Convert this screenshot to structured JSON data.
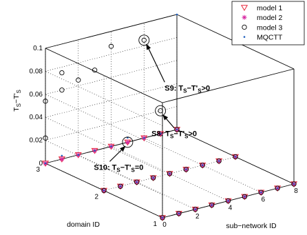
{
  "chart_data": {
    "type": "scatter",
    "dimensions": 3,
    "xlabel": "sub−network ID",
    "ylabel": "domain ID",
    "zlabel_main": "T",
    "zlabel_sub1": "S",
    "zlabel_mid": "−T'",
    "zlabel_sub2": "S",
    "xlim": [
      0,
      8
    ],
    "ylim": [
      1,
      3
    ],
    "zlim": [
      0,
      0.1
    ],
    "xticks": [
      "0",
      "2",
      "4",
      "6",
      "8"
    ],
    "yticks": [
      "1",
      "2",
      "3"
    ],
    "zticks": [
      "0",
      "0.02",
      "0.04",
      "0.06",
      "0.08",
      "0.1"
    ],
    "legend_position": "top-right",
    "grid": true,
    "series": [
      {
        "name": "model 1",
        "marker": "triangle-down",
        "color": "#e8273a",
        "points": [
          [
            0,
            1,
            0
          ],
          [
            1,
            1,
            0
          ],
          [
            2,
            1,
            0
          ],
          [
            3,
            1,
            0
          ],
          [
            4,
            1,
            0
          ],
          [
            5,
            1,
            0
          ],
          [
            6,
            1,
            0
          ],
          [
            7,
            1,
            0
          ],
          [
            8,
            1,
            0
          ],
          [
            0,
            2,
            0
          ],
          [
            1,
            2,
            0
          ],
          [
            2,
            2,
            0
          ],
          [
            3,
            2,
            0
          ],
          [
            4,
            2,
            0
          ],
          [
            5,
            2,
            0
          ],
          [
            6,
            2,
            0
          ],
          [
            7,
            2,
            0
          ],
          [
            8,
            2,
            0
          ],
          [
            0,
            3,
            0
          ],
          [
            1,
            3,
            0
          ],
          [
            2,
            3,
            0
          ],
          [
            3,
            3,
            0
          ],
          [
            4,
            3,
            0
          ],
          [
            5,
            3,
            0
          ],
          [
            6,
            3,
            0
          ],
          [
            7,
            3,
            0
          ],
          [
            8,
            3,
            0
          ]
        ]
      },
      {
        "name": "model 2",
        "marker": "asterisk",
        "color": "#d6249f",
        "points": [
          [
            0,
            1,
            0
          ],
          [
            1,
            1,
            0
          ],
          [
            2,
            1,
            0
          ],
          [
            3,
            1,
            0
          ],
          [
            4,
            1,
            0
          ],
          [
            5,
            1,
            0
          ],
          [
            6,
            1,
            0
          ],
          [
            7,
            1,
            0
          ],
          [
            8,
            1,
            0
          ],
          [
            0,
            2,
            0
          ],
          [
            1,
            2,
            0
          ],
          [
            2,
            2,
            0
          ],
          [
            3,
            2,
            0
          ],
          [
            4,
            2,
            0
          ],
          [
            5,
            2,
            0
          ],
          [
            6,
            2,
            0
          ],
          [
            7,
            2,
            0
          ],
          [
            8,
            2,
            0
          ],
          [
            0,
            3,
            0
          ],
          [
            1,
            3,
            0
          ],
          [
            2,
            3,
            0
          ],
          [
            3,
            3,
            0
          ],
          [
            4,
            3,
            0
          ],
          [
            5,
            3,
            0
          ],
          [
            6,
            3,
            0
          ],
          [
            7,
            3,
            0
          ],
          [
            8,
            3,
            0
          ]
        ]
      },
      {
        "name": "model 3",
        "marker": "circle",
        "color": "#000000",
        "points": [
          [
            0,
            1,
            0
          ],
          [
            1,
            1,
            0
          ],
          [
            2,
            1,
            0
          ],
          [
            3,
            1,
            0
          ],
          [
            4,
            1,
            0
          ],
          [
            5,
            1,
            0
          ],
          [
            6,
            1,
            0
          ],
          [
            7,
            1,
            0
          ],
          [
            8,
            1,
            0
          ],
          [
            0,
            2,
            0
          ],
          [
            1,
            2,
            0
          ],
          [
            2,
            2,
            0
          ],
          [
            3,
            2,
            0
          ],
          [
            4,
            2,
            0
          ],
          [
            5,
            2,
            0
          ],
          [
            6,
            2,
            0
          ],
          [
            7,
            2,
            0
          ],
          [
            8,
            2,
            0
          ],
          [
            0,
            3,
            0.022
          ],
          [
            0,
            3,
            0.054
          ],
          [
            1,
            3,
            0.06
          ],
          [
            1,
            3,
            0.075
          ],
          [
            2,
            3,
            0.065
          ],
          [
            3,
            3,
            0.07
          ],
          [
            4,
            3,
            0.087
          ],
          [
            6,
            3,
            0.085
          ],
          [
            7,
            3,
            0.02
          ],
          [
            8,
            3,
            0
          ]
        ]
      },
      {
        "name": "MQCTT",
        "marker": "dot",
        "color": "#1f5fbf",
        "points": [
          [
            0,
            1,
            0
          ],
          [
            1,
            1,
            0
          ],
          [
            2,
            1,
            0
          ],
          [
            3,
            1,
            0
          ],
          [
            4,
            1,
            0
          ],
          [
            5,
            1,
            0
          ],
          [
            6,
            1,
            0
          ],
          [
            7,
            1,
            0
          ],
          [
            8,
            1,
            0
          ],
          [
            0,
            2,
            0
          ],
          [
            1,
            2,
            0
          ],
          [
            2,
            2,
            0
          ],
          [
            3,
            2,
            0
          ],
          [
            4,
            2,
            0
          ],
          [
            5,
            2,
            0
          ],
          [
            6,
            2,
            0
          ],
          [
            7,
            2,
            0
          ],
          [
            8,
            2,
            0
          ],
          [
            0,
            3,
            0
          ],
          [
            1,
            3,
            0.003
          ],
          [
            2,
            3,
            0
          ],
          [
            3,
            3,
            0
          ],
          [
            4,
            3,
            0
          ],
          [
            5,
            3,
            0.004
          ],
          [
            6,
            3,
            0
          ],
          [
            7,
            3,
            0
          ],
          [
            8,
            3,
            0
          ],
          [
            8,
            3,
            0.1
          ]
        ]
      }
    ],
    "annotations": [
      {
        "id": "s9",
        "label_main": "S9: T",
        "sub1": "S",
        "mid": "−T'",
        "sub2": "S",
        "tail": ">0",
        "point": [
          6,
          3,
          0.085
        ]
      },
      {
        "id": "s8",
        "label_main": "S8: T",
        "sub1": "S",
        "mid": "−T'",
        "sub2": "S",
        "tail": ">0",
        "point": [
          7,
          3,
          0.02
        ]
      },
      {
        "id": "s10",
        "label_main": "S10: T",
        "sub1": "S",
        "mid": "−T'",
        "sub2": "S",
        "tail": "=0",
        "point": [
          5,
          3,
          0
        ]
      }
    ]
  }
}
